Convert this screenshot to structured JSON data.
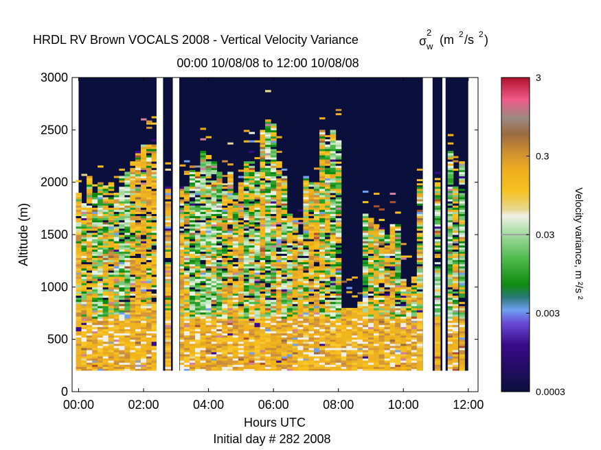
{
  "chart_data": {
    "type": "heatmap",
    "title": "HRDL RV Brown VOCALS 2008 - Vertical Velocity Variance",
    "title_symbol": "σ",
    "title_symbol_sub": "w",
    "title_symbol_sup": "2",
    "title_units_open": "(m",
    "title_units_sup": "2",
    "title_units_mid": "/s",
    "title_units_sup2": "2",
    "title_units_close": ")",
    "subtitle": "00:00 10/08/08 to 12:00 10/08/08",
    "xlabel": "Hours UTC",
    "xlabel2": "Initial day # 282  2008",
    "ylabel": "Altitude (m)",
    "xlim": [
      -0.2,
      12.3
    ],
    "ylim": [
      0,
      3000
    ],
    "x_ticks": [
      0,
      2,
      4,
      6,
      8,
      10,
      12
    ],
    "x_tick_labels": [
      "00:00",
      "02:00",
      "04:00",
      "06:00",
      "08:00",
      "10:00",
      "12:00"
    ],
    "y_ticks": [
      0,
      500,
      1000,
      1500,
      2000,
      2500,
      3000
    ],
    "y_tick_labels": [
      "0",
      "500",
      "1000",
      "1500",
      "2000",
      "2500",
      "3000"
    ],
    "colorbar": {
      "label": "Velocity variance, m ²/s ²",
      "scale": "log",
      "range": [
        0.0003,
        3
      ],
      "ticks": [
        0.0003,
        0.003,
        0.03,
        0.3,
        3
      ],
      "tick_labels": [
        "0.0003",
        "0.003",
        "0.03",
        "0.3",
        "3"
      ]
    },
    "data_gaps_hours": [
      [
        2.4,
        2.6
      ],
      [
        2.9,
        3.1
      ],
      [
        10.6,
        10.9
      ],
      [
        11.2,
        11.3
      ]
    ],
    "lowest_range_gate_m": 200,
    "background_color": "#0b0f3c",
    "columns": [
      {
        "hour": 0.0,
        "top": 1900,
        "level": "low",
        "mix": "orange"
      },
      {
        "hour": 0.17,
        "top": 1800,
        "level": "low",
        "mix": "mixed"
      },
      {
        "hour": 0.33,
        "top": 2050,
        "level": "low",
        "mix": "orange"
      },
      {
        "hour": 0.5,
        "top": 1900,
        "level": "low",
        "mix": "green"
      },
      {
        "hour": 0.67,
        "top": 2000,
        "level": "low",
        "mix": "green"
      },
      {
        "hour": 0.83,
        "top": 1950,
        "level": "low",
        "mix": "mixed"
      },
      {
        "hour": 1.0,
        "top": 2000,
        "level": "low",
        "mix": "orange"
      },
      {
        "hour": 1.17,
        "top": 1900,
        "level": "low",
        "mix": "mixed"
      },
      {
        "hour": 1.33,
        "top": 2050,
        "level": "low",
        "mix": "green"
      },
      {
        "hour": 1.5,
        "top": 2100,
        "level": "low",
        "mix": "green"
      },
      {
        "hour": 1.67,
        "top": 2200,
        "level": "low",
        "mix": "orange"
      },
      {
        "hour": 1.83,
        "top": 2300,
        "level": "low",
        "mix": "orange"
      },
      {
        "hour": 2.0,
        "top": 2350,
        "level": "low",
        "mix": "orange"
      },
      {
        "hour": 2.17,
        "top": 2350,
        "level": "low",
        "mix": "orange"
      },
      {
        "hour": 2.33,
        "top": 2350,
        "level": "low",
        "mix": "orange"
      },
      {
        "hour": 2.75,
        "top": 1950,
        "level": "low",
        "mix": "orange"
      },
      {
        "hour": 3.2,
        "top": 1950,
        "level": "low",
        "mix": "orange"
      },
      {
        "hour": 3.33,
        "top": 1950,
        "level": "low",
        "mix": "mixed"
      },
      {
        "hour": 3.5,
        "top": 2150,
        "level": "low",
        "mix": "green"
      },
      {
        "hour": 3.67,
        "top": 2100,
        "level": "low",
        "mix": "green"
      },
      {
        "hour": 3.83,
        "top": 2300,
        "level": "low",
        "mix": "green"
      },
      {
        "hour": 4.0,
        "top": 2200,
        "level": "low",
        "mix": "green"
      },
      {
        "hour": 4.17,
        "top": 2200,
        "level": "low",
        "mix": "green"
      },
      {
        "hour": 4.33,
        "top": 2100,
        "level": "low",
        "mix": "green"
      },
      {
        "hour": 4.5,
        "top": 1950,
        "level": "low",
        "mix": "mixed"
      },
      {
        "hour": 4.67,
        "top": 2100,
        "level": "low",
        "mix": "orange"
      },
      {
        "hour": 4.83,
        "top": 1900,
        "level": "low",
        "mix": "mixed"
      },
      {
        "hour": 5.0,
        "top": 2000,
        "level": "low",
        "mix": "orange"
      },
      {
        "hour": 5.17,
        "top": 2200,
        "level": "low",
        "mix": "green"
      },
      {
        "hour": 5.33,
        "top": 2200,
        "level": "low",
        "mix": "mixed"
      },
      {
        "hour": 5.5,
        "top": 2100,
        "level": "low",
        "mix": "green"
      },
      {
        "hour": 5.67,
        "top": 2500,
        "level": "low",
        "mix": "orange"
      },
      {
        "hour": 5.83,
        "top": 2600,
        "level": "low",
        "mix": "green"
      },
      {
        "hour": 6.0,
        "top": 2550,
        "level": "low",
        "mix": "green"
      },
      {
        "hour": 6.17,
        "top": 2200,
        "level": "low",
        "mix": "orange"
      },
      {
        "hour": 6.33,
        "top": 2050,
        "level": "low",
        "mix": "green"
      },
      {
        "hour": 6.5,
        "top": 1700,
        "level": "low",
        "mix": "mixed"
      },
      {
        "hour": 6.67,
        "top": 1650,
        "level": "low",
        "mix": "orange"
      },
      {
        "hour": 6.83,
        "top": 1500,
        "level": "low",
        "mix": "orange"
      },
      {
        "hour": 7.0,
        "top": 2050,
        "level": "low",
        "mix": "mixed"
      },
      {
        "hour": 7.17,
        "top": 2000,
        "level": "low",
        "mix": "orange"
      },
      {
        "hour": 7.33,
        "top": 2000,
        "level": "low",
        "mix": "orange"
      },
      {
        "hour": 7.5,
        "top": 2500,
        "level": "low",
        "mix": "mixed"
      },
      {
        "hour": 7.67,
        "top": 2350,
        "level": "low",
        "mix": "mixed"
      },
      {
        "hour": 7.83,
        "top": 2500,
        "level": "low",
        "mix": "green"
      },
      {
        "hour": 8.0,
        "top": 2400,
        "level": "low",
        "mix": "green"
      },
      {
        "hour": 8.17,
        "top": 800,
        "level": "low",
        "mix": "orange"
      },
      {
        "hour": 8.33,
        "top": 800,
        "level": "low",
        "mix": "orange"
      },
      {
        "hour": 8.5,
        "top": 800,
        "level": "low",
        "mix": "orange"
      },
      {
        "hour": 8.67,
        "top": 850,
        "level": "low",
        "mix": "orange"
      },
      {
        "hour": 8.83,
        "top": 1700,
        "level": "low",
        "mix": "green"
      },
      {
        "hour": 9.0,
        "top": 1650,
        "level": "low",
        "mix": "mixed"
      },
      {
        "hour": 9.17,
        "top": 1600,
        "level": "low",
        "mix": "mixed"
      },
      {
        "hour": 9.33,
        "top": 1550,
        "level": "low",
        "mix": "mixed"
      },
      {
        "hour": 9.5,
        "top": 1500,
        "level": "low",
        "mix": "mixed"
      },
      {
        "hour": 9.67,
        "top": 1600,
        "level": "low",
        "mix": "orange"
      },
      {
        "hour": 9.83,
        "top": 1600,
        "level": "low",
        "mix": "green"
      },
      {
        "hour": 10.0,
        "top": 1100,
        "level": "low",
        "mix": "mixed"
      },
      {
        "hour": 10.17,
        "top": 1000,
        "level": "low",
        "mix": "mixed"
      },
      {
        "hour": 10.33,
        "top": 1100,
        "level": "low",
        "mix": "mixed"
      },
      {
        "hour": 10.5,
        "top": 1950,
        "level": "low",
        "mix": "mixed"
      },
      {
        "hour": 11.05,
        "top": 2000,
        "level": "low",
        "mix": "green"
      },
      {
        "hour": 11.45,
        "top": 2300,
        "level": "low",
        "mix": "green"
      },
      {
        "hour": 11.6,
        "top": 1950,
        "level": "low",
        "mix": "mixed"
      },
      {
        "hour": 11.8,
        "top": 2200,
        "level": "low",
        "mix": "green"
      }
    ]
  }
}
